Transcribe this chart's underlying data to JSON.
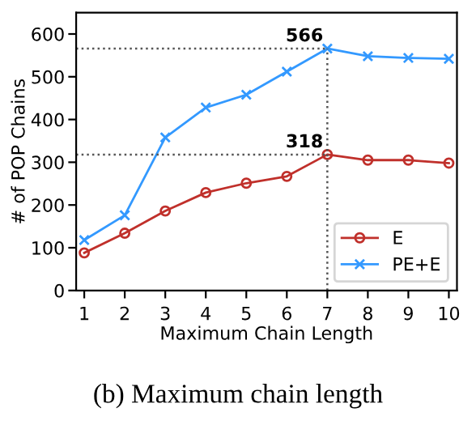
{
  "chart_data": {
    "type": "line",
    "xlabel": "Maximum Chain Length",
    "ylabel": "# of POP Chains",
    "x": [
      1,
      2,
      3,
      4,
      5,
      6,
      7,
      8,
      9,
      10
    ],
    "series": [
      {
        "name": "E",
        "color": "#c0302b",
        "marker": "circle",
        "values": [
          88,
          134,
          186,
          229,
          251,
          267,
          318,
          305,
          305,
          298
        ]
      },
      {
        "name": "PE+E",
        "color": "#3399ff",
        "marker": "cross",
        "values": [
          118,
          176,
          358,
          428,
          458,
          512,
          566,
          548,
          544,
          542
        ]
      }
    ],
    "xlim": [
      0.8,
      10.2
    ],
    "xticks": [
      1,
      2,
      3,
      4,
      5,
      6,
      7,
      8,
      9,
      10
    ],
    "ylim": [
      0,
      650
    ],
    "yticks": [
      0,
      100,
      200,
      300,
      400,
      500,
      600
    ],
    "ref_lines": [
      {
        "axis": "y",
        "value": 566,
        "label": "566",
        "line_style": "dotted"
      },
      {
        "axis": "y",
        "value": 318,
        "label": "318",
        "line_style": "dotted"
      },
      {
        "axis": "x",
        "value": 7,
        "label": null,
        "line_style": "dotted"
      }
    ],
    "annotations": [
      "(b) Maximum chain length"
    ],
    "grid": false,
    "legend": "bottom right"
  }
}
